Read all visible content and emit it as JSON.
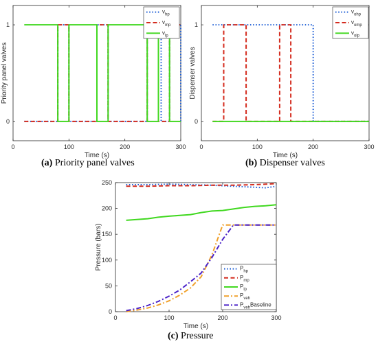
{
  "captions": [
    {
      "tag": "(a)",
      "text": "Priority panel valves"
    },
    {
      "tag": "(b)",
      "text": "Dispenser valves"
    },
    {
      "tag": "(c)",
      "text": "Pressure"
    }
  ],
  "chart_data": [
    {
      "type": "line",
      "xlabel": "Time (s)",
      "ylabel": "Priority panel valves",
      "xlim": [
        0,
        300
      ],
      "ylim": [
        -0.2,
        1.2
      ],
      "xticks": [
        "0",
        "100",
        "200",
        "300"
      ],
      "yticks": [
        "0",
        "1"
      ],
      "grid": false,
      "legend": "top-right",
      "series": [
        {
          "name": "v",
          "sub": "hp",
          "color": "#1f5fd6",
          "dash": "dotted",
          "x": [
            20,
            80,
            80,
            100,
            100,
            150,
            150,
            170,
            170,
            240,
            240,
            265,
            265,
            280,
            280,
            300,
            300
          ],
          "y": [
            0,
            0,
            1,
            1,
            0,
            0,
            1,
            1,
            0,
            0,
            1,
            1,
            0,
            0,
            1,
            1,
            0
          ]
        },
        {
          "name": "v",
          "sub": "mp",
          "color": "#d42b1e",
          "dash": "dashed",
          "x": [
            20,
            80,
            80,
            100,
            100,
            150,
            150,
            170,
            170,
            240,
            240,
            260,
            260,
            280,
            280,
            300
          ],
          "y": [
            0,
            0,
            1,
            1,
            0,
            0,
            1,
            1,
            0,
            0,
            1,
            1,
            0,
            0,
            1,
            1
          ]
        },
        {
          "name": "v",
          "sub": "lp",
          "color": "#40d81f",
          "dash": "solid",
          "x": [
            20,
            80,
            80,
            100,
            100,
            150,
            150,
            170,
            170,
            240,
            240,
            260,
            260,
            280,
            280,
            300
          ],
          "y": [
            1,
            1,
            0,
            0,
            1,
            1,
            0,
            0,
            1,
            1,
            0,
            0,
            1,
            1,
            0,
            0
          ]
        }
      ]
    },
    {
      "type": "line",
      "xlabel": "Time (s)",
      "ylabel": "Dispenser valves",
      "xlim": [
        0,
        300
      ],
      "ylim": [
        -0.2,
        1.2
      ],
      "xticks": [
        "0",
        "100",
        "200",
        "300"
      ],
      "yticks": [
        "0",
        "1"
      ],
      "grid": false,
      "legend": "top-right",
      "series": [
        {
          "name": "v",
          "sub": "ohp",
          "color": "#1f5fd6",
          "dash": "dotted",
          "x": [
            20,
            200,
            200,
            300
          ],
          "y": [
            1,
            1,
            0,
            0
          ]
        },
        {
          "name": "v",
          "sub": "omp",
          "color": "#d42b1e",
          "dash": "dashed",
          "x": [
            20,
            40,
            40,
            80,
            80,
            140,
            140,
            160,
            160,
            300
          ],
          "y": [
            0,
            0,
            1,
            1,
            0,
            0,
            1,
            1,
            0,
            0
          ]
        },
        {
          "name": "v",
          "sub": "olp",
          "color": "#40d81f",
          "dash": "solid",
          "x": [
            20,
            300
          ],
          "y": [
            0,
            0
          ]
        }
      ]
    },
    {
      "type": "line",
      "xlabel": "Time (s)",
      "ylabel": "Pressure (bars)",
      "xlim": [
        0,
        300
      ],
      "ylim": [
        0,
        250
      ],
      "xticks": [
        "0",
        "100",
        "200",
        "300"
      ],
      "yticks": [
        "0",
        "50",
        "100",
        "150",
        "200",
        "250"
      ],
      "grid": false,
      "legend": "bottom-right",
      "series": [
        {
          "name": "P",
          "sub": "hp",
          "suffix": "",
          "color": "#1f5fd6",
          "dash": "dotted",
          "x": [
            20,
            60,
            100,
            140,
            180,
            220,
            260,
            280,
            295,
            300
          ],
          "y": [
            246,
            246,
            247,
            246,
            245,
            243,
            241,
            240,
            242,
            244
          ]
        },
        {
          "name": "P",
          "sub": "mp",
          "suffix": "",
          "color": "#d42b1e",
          "dash": "dashed",
          "x": [
            20,
            60,
            100,
            140,
            180,
            220,
            260,
            280,
            300
          ],
          "y": [
            243,
            243,
            244,
            244,
            245,
            245,
            246,
            247,
            248
          ]
        },
        {
          "name": "P",
          "sub": "lp",
          "suffix": "",
          "color": "#40d81f",
          "dash": "solid",
          "x": [
            20,
            60,
            80,
            100,
            140,
            160,
            180,
            200,
            220,
            240,
            260,
            280,
            300
          ],
          "y": [
            177,
            180,
            183,
            185,
            188,
            192,
            195,
            196,
            199,
            202,
            204,
            205,
            207
          ]
        },
        {
          "name": "P",
          "sub": "veh",
          "suffix": "",
          "color": "#f0a02a",
          "dash": "dashdot",
          "x": [
            20,
            40,
            60,
            80,
            100,
            120,
            140,
            160,
            180,
            200,
            300
          ],
          "y": [
            0,
            3,
            7,
            13,
            21,
            32,
            46,
            68,
            110,
            168,
            168
          ]
        },
        {
          "name": "P",
          "sub": "veh",
          "suffix": "Baseline",
          "color": "#4a22c8",
          "dash": "dashdot",
          "x": [
            20,
            40,
            60,
            80,
            100,
            120,
            140,
            160,
            180,
            200,
            220,
            300
          ],
          "y": [
            2,
            6,
            12,
            20,
            30,
            42,
            58,
            75,
            105,
            140,
            168,
            168
          ]
        }
      ]
    }
  ]
}
